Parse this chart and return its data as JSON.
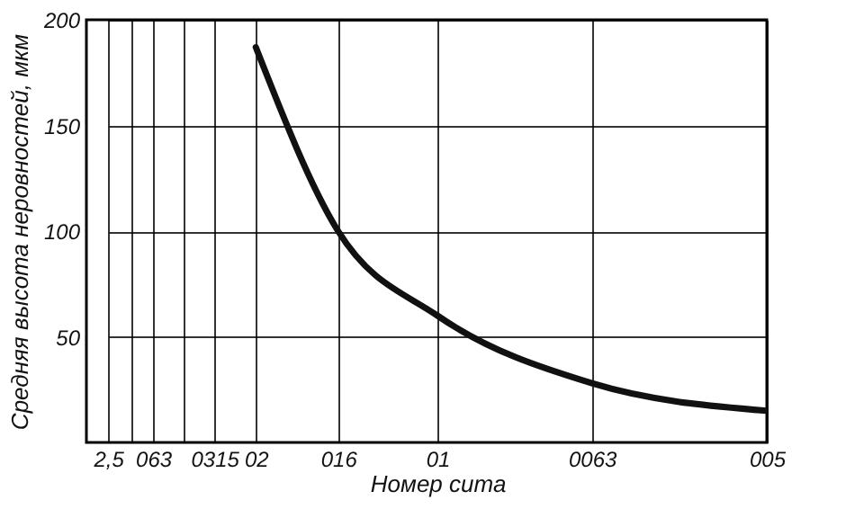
{
  "chart_data": {
    "type": "line",
    "xlabel": "Номер сита",
    "ylabel": "Средняя высота неровностей, мкм",
    "categories": [
      "2,5",
      null,
      "063",
      null,
      "0315",
      "02",
      "016",
      "01",
      "0063",
      "005"
    ],
    "series": [
      {
        "color": "#111111",
        "values": [
          null,
          null,
          null,
          null,
          null,
          187,
          100,
          60,
          28,
          15
        ]
      }
    ],
    "ylim": [
      0,
      200
    ],
    "yticks": [
      50,
      100,
      150,
      200
    ],
    "grid": true,
    "marker": "none",
    "line_style": "solid"
  }
}
